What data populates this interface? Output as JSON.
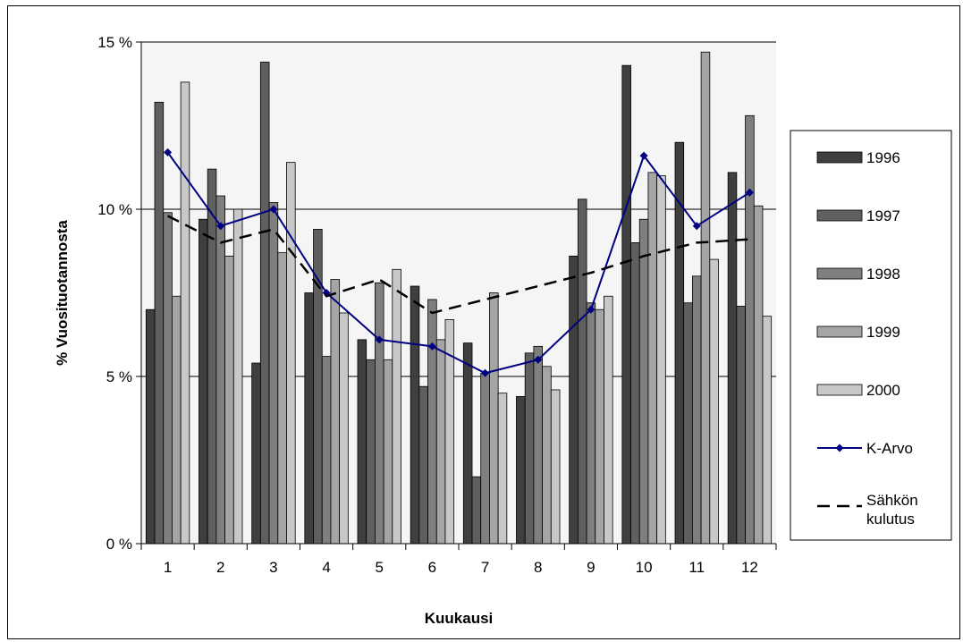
{
  "chart_data": {
    "type": "bar",
    "title": "",
    "xlabel": "Kuukausi",
    "ylabel": "% Vuosituotannosta",
    "ylim": [
      0,
      15
    ],
    "yticks": [
      0,
      5,
      10,
      15
    ],
    "ytick_labels": [
      "0 %",
      "5 %",
      "10 %",
      "15 %"
    ],
    "categories": [
      "1",
      "2",
      "3",
      "4",
      "5",
      "6",
      "7",
      "8",
      "9",
      "10",
      "11",
      "12"
    ],
    "grid": true,
    "legend_position": "right",
    "series": [
      {
        "name": "1996",
        "kind": "bar",
        "color": "#3f3f3f",
        "values": [
          7.0,
          9.7,
          5.4,
          7.5,
          6.1,
          7.7,
          6.0,
          4.4,
          8.6,
          14.3,
          12.0,
          11.1
        ]
      },
      {
        "name": "1997",
        "kind": "bar",
        "color": "#5f5f5f",
        "values": [
          13.2,
          11.2,
          14.4,
          9.4,
          5.5,
          4.7,
          2.0,
          5.7,
          10.3,
          9.0,
          7.2,
          7.1
        ]
      },
      {
        "name": "1998",
        "kind": "bar",
        "color": "#7f7f7f",
        "values": [
          9.9,
          10.4,
          10.2,
          5.6,
          7.8,
          7.3,
          5.1,
          5.9,
          7.2,
          9.7,
          8.0,
          12.8
        ]
      },
      {
        "name": "1999",
        "kind": "bar",
        "color": "#a5a5a5",
        "values": [
          7.4,
          8.6,
          8.7,
          7.9,
          5.5,
          6.1,
          7.5,
          5.3,
          7.0,
          11.1,
          14.7,
          10.1
        ]
      },
      {
        "name": "2000",
        "kind": "bar",
        "color": "#c8c8c8",
        "values": [
          13.8,
          10.0,
          11.4,
          6.9,
          8.2,
          6.7,
          4.5,
          4.6,
          7.4,
          11.0,
          8.5,
          6.8
        ]
      },
      {
        "name": "K-Arvo",
        "kind": "line",
        "color": "#000080",
        "values": [
          11.7,
          9.5,
          10.0,
          7.5,
          6.1,
          5.9,
          5.1,
          5.5,
          7.0,
          11.6,
          9.5,
          10.5
        ]
      },
      {
        "name": "Sähkön kulutus",
        "kind": "dashed-line",
        "color": "#000000",
        "values": [
          9.8,
          9.0,
          9.4,
          7.4,
          7.9,
          6.9,
          7.3,
          7.7,
          8.1,
          8.6,
          9.0,
          9.1
        ]
      }
    ]
  }
}
